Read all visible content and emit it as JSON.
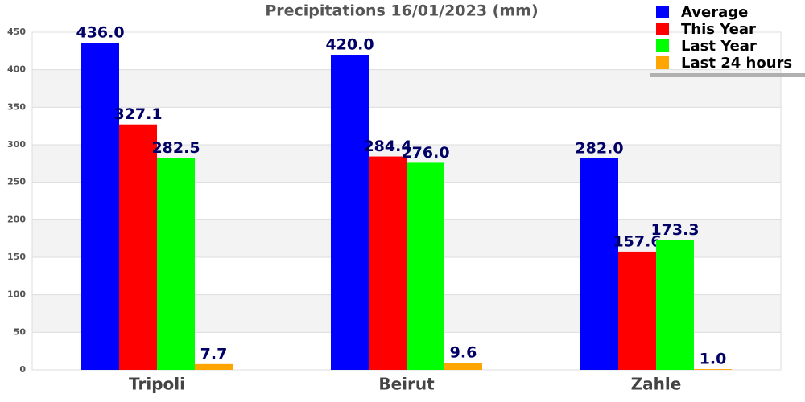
{
  "chart_data": {
    "type": "bar",
    "title": "Precipitations 16/01/2023 (mm)",
    "categories": [
      "Tripoli",
      "Beirut",
      "Zahle"
    ],
    "series": [
      {
        "name": "Average",
        "color": "#0000ff",
        "values": [
          436,
          420,
          282
        ],
        "value_labels": [
          "436.0",
          "420.0",
          "282.0"
        ]
      },
      {
        "name": "This Year",
        "color": "#ff0000",
        "values": [
          327.1,
          284.4,
          157.6
        ],
        "value_labels": [
          "327.1",
          "284.4",
          "157.6"
        ]
      },
      {
        "name": "Last Year",
        "color": "#00ff00",
        "values": [
          282.5,
          276,
          173.3
        ],
        "value_labels": [
          "282.5",
          "276.0",
          "173.3"
        ]
      },
      {
        "name": "Last 24 hours",
        "color": "#ffa500",
        "values": [
          7.7,
          9.6,
          1
        ],
        "value_labels": [
          "7.7",
          "9.6",
          "1.0"
        ]
      }
    ],
    "ylim": [
      0,
      450
    ],
    "yticks": [
      0,
      50,
      100,
      150,
      200,
      250,
      300,
      350,
      400,
      450
    ],
    "grid": true,
    "legend": "upper right"
  }
}
